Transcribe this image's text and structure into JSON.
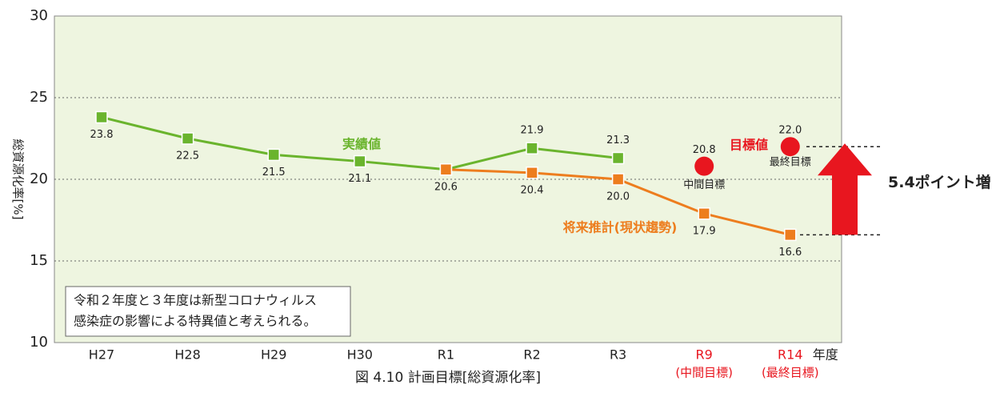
{
  "chart_data": {
    "type": "line",
    "categories": [
      "H27",
      "H28",
      "H29",
      "H30",
      "R1",
      "R2",
      "R3",
      "R9",
      "R14"
    ],
    "category_sublabels": [
      null,
      null,
      null,
      null,
      null,
      null,
      null,
      "(中間目標)",
      "(最終目標)"
    ],
    "category_colors": [
      "#222",
      "#222",
      "#222",
      "#222",
      "#222",
      "#222",
      "#222",
      "#e8161f",
      "#e8161f"
    ],
    "x_suffix": "年度",
    "ylabel": "総資源化率[%]",
    "ylim": [
      10,
      30
    ],
    "yticks": [
      10,
      15,
      20,
      25,
      30
    ],
    "grid": true,
    "caption": "図 4.10 計画目標[総資源化率]",
    "series": [
      {
        "name": "実績値",
        "color": "#6ab42d",
        "marker": "square",
        "values": [
          23.8,
          22.5,
          21.5,
          21.1,
          20.6,
          21.9,
          21.3,
          null,
          null
        ],
        "value_labels": [
          "23.8",
          "22.5",
          "21.5",
          "21.1",
          "20.6",
          "21.9",
          "21.3",
          null,
          null
        ]
      },
      {
        "name": "将来推計(現状趨勢)",
        "color": "#ed7d1e",
        "marker": "square",
        "values": [
          null,
          null,
          null,
          null,
          20.6,
          20.4,
          20.0,
          17.9,
          16.6
        ],
        "value_labels": [
          null,
          null,
          null,
          null,
          null,
          "20.4",
          "20.0",
          "17.9",
          "16.6"
        ]
      },
      {
        "name": "目標値",
        "color": "#e8161f",
        "marker": "circle",
        "values": [
          null,
          null,
          null,
          null,
          null,
          null,
          null,
          20.8,
          22.0
        ],
        "value_labels": [
          null,
          null,
          null,
          null,
          null,
          null,
          null,
          "20.8",
          "22.0"
        ],
        "point_notes": [
          null,
          null,
          null,
          null,
          null,
          null,
          null,
          "中間目標",
          "最終目標"
        ]
      }
    ],
    "annotations": {
      "increase": "5.4ポイント増",
      "note": [
        "令和２年度と３年度は新型コロナウィルス",
        "感染症の影響による特異値と考えられる。"
      ]
    }
  }
}
